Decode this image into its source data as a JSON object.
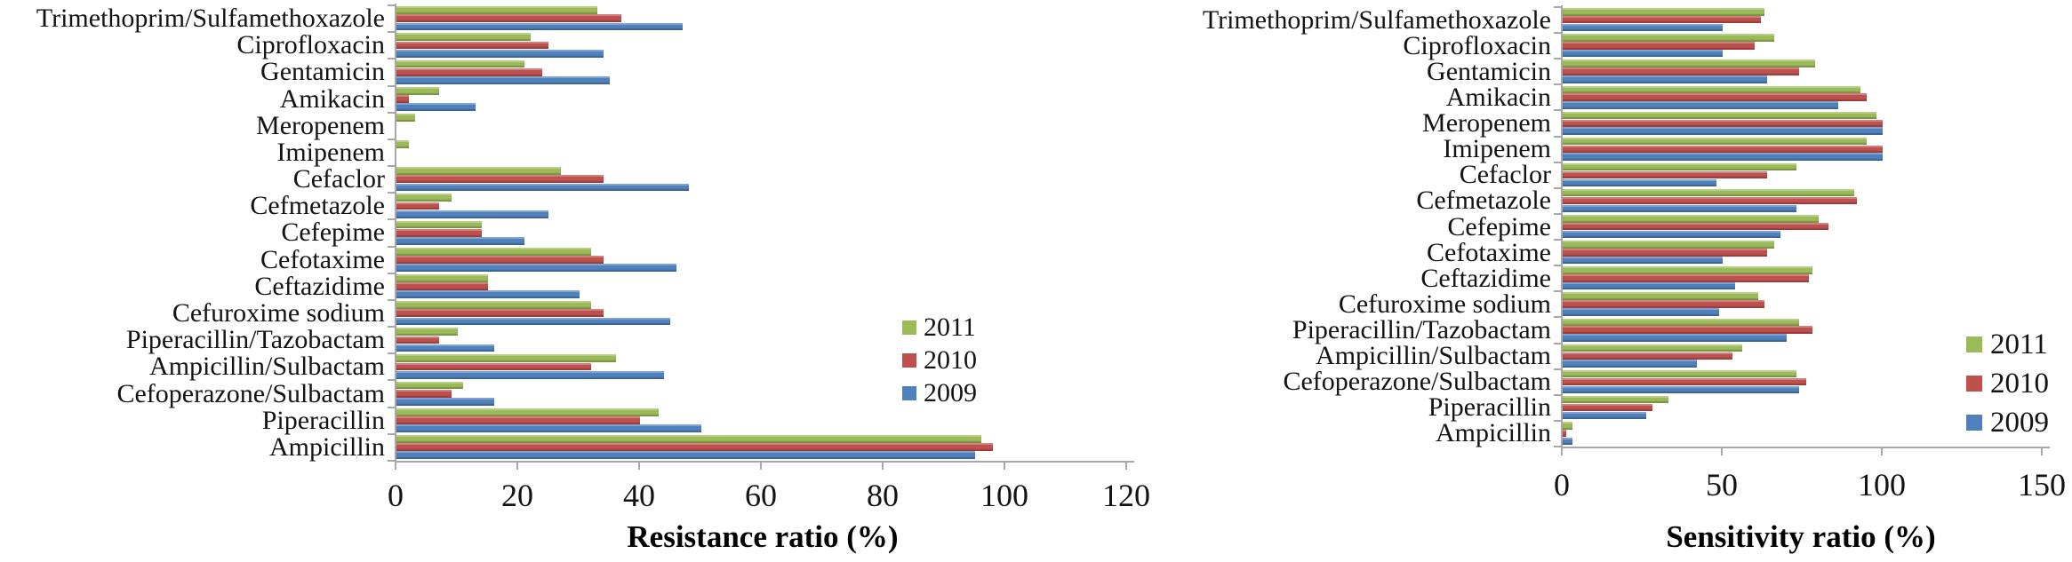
{
  "figure_background": "#ffffff",
  "axis_color": "#a8a8a8",
  "text_color": "#131313",
  "chart_data": [
    {
      "type": "bar",
      "orientation": "horizontal",
      "title": "",
      "xlabel": "Resistance ratio (%)",
      "ylabel": "",
      "xlim": [
        0,
        120
      ],
      "xticks": [
        0,
        20,
        40,
        60,
        80,
        100,
        120
      ],
      "grid": false,
      "legend_position": "inside-right-middle",
      "categories": [
        "Trimethoprim/Sulfamethoxazole",
        "Ciprofloxacin",
        "Gentamicin",
        "Amikacin",
        "Meropenem",
        "Imipenem",
        "Cefaclor",
        "Cefmetazole",
        "Cefepime",
        "Cefotaxime",
        "Ceftazidime",
        "Cefuroxime sodium",
        "Piperacillin/Tazobactam",
        "Ampicillin/Sulbactam",
        "Cefoperazone/Sulbactam",
        "Piperacillin",
        "Ampicillin"
      ],
      "series": [
        {
          "name": "2011",
          "color": "#9BBB59",
          "values": [
            33,
            22,
            21,
            7,
            3,
            2,
            27,
            9,
            14,
            32,
            15,
            32,
            10,
            36,
            11,
            43,
            96
          ]
        },
        {
          "name": "2010",
          "color": "#C0504D",
          "values": [
            37,
            25,
            24,
            2,
            0,
            0,
            34,
            7,
            14,
            34,
            15,
            34,
            7,
            32,
            9,
            40,
            98
          ]
        },
        {
          "name": "2009",
          "color": "#4F81BD",
          "values": [
            47,
            34,
            35,
            13,
            0,
            0,
            48,
            25,
            21,
            46,
            30,
            45,
            16,
            44,
            16,
            50,
            95
          ]
        }
      ]
    },
    {
      "type": "bar",
      "orientation": "horizontal",
      "title": "",
      "xlabel": "Sensitivity ratio (%)",
      "ylabel": "",
      "xlim": [
        0,
        150
      ],
      "xticks": [
        0,
        50,
        100,
        150
      ],
      "grid": false,
      "legend_position": "inside-right-middle",
      "categories": [
        "Trimethoprim/Sulfamethoxazole",
        "Ciprofloxacin",
        "Gentamicin",
        "Amikacin",
        "Meropenem",
        "Imipenem",
        "Cefaclor",
        "Cefmetazole",
        "Cefepime",
        "Cefotaxime",
        "Ceftazidime",
        "Cefuroxime sodium",
        "Piperacillin/Tazobactam",
        "Ampicillin/Sulbactam",
        "Cefoperazone/Sulbactam",
        "Piperacillin",
        "Ampicillin"
      ],
      "series": [
        {
          "name": "2011",
          "color": "#9BBB59",
          "values": [
            63,
            66,
            79,
            93,
            98,
            95,
            73,
            91,
            80,
            66,
            78,
            61,
            74,
            56,
            73,
            33,
            3
          ]
        },
        {
          "name": "2010",
          "color": "#C0504D",
          "values": [
            62,
            60,
            74,
            95,
            100,
            100,
            64,
            92,
            83,
            64,
            77,
            63,
            78,
            53,
            76,
            28,
            1
          ]
        },
        {
          "name": "2009",
          "color": "#4F81BD",
          "values": [
            50,
            50,
            64,
            86,
            100,
            100,
            48,
            73,
            68,
            50,
            54,
            49,
            70,
            42,
            74,
            26,
            3
          ]
        }
      ]
    }
  ]
}
